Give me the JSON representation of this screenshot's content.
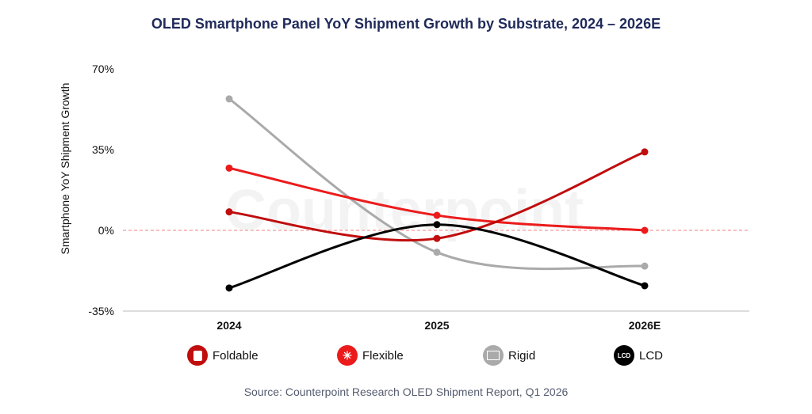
{
  "chart_data": {
    "type": "line",
    "title": "OLED Smartphone Panel YoY Shipment Growth by Substrate, 2024 – 2026E",
    "ylabel": "Smartphone YoY Shipment Growth",
    "xlabel": "",
    "categories": [
      "2024",
      "2025",
      "2026E"
    ],
    "ylim": [
      -35,
      70
    ],
    "yticks": [
      "70%",
      "35%",
      "0%",
      "-35%"
    ],
    "ytick_values": [
      70,
      35,
      0,
      -35
    ],
    "zero_line": "dashed",
    "grid": false,
    "legend_position": "bottom",
    "series": [
      {
        "name": "Foldable",
        "color": "#c00d0d",
        "icon": "foldable-phone-icon",
        "values": [
          8,
          -3.5,
          34
        ]
      },
      {
        "name": "Flexible",
        "color": "#ec1b1b",
        "icon": "flexible-panel-icon",
        "values": [
          27,
          6.5,
          0
        ]
      },
      {
        "name": "Rigid",
        "color": "#aaaaaa",
        "icon": "rigid-panel-icon",
        "values": [
          57,
          -9.5,
          -15.5
        ]
      },
      {
        "name": "LCD",
        "color": "#000000",
        "icon": "lcd-monitor-icon",
        "values": [
          -25,
          2.5,
          -24
        ]
      }
    ]
  },
  "lcd_icon_text": "LCD",
  "watermark": "Counterpoint",
  "source": "Source: Counterpoint Research OLED Shipment Report, Q1 2026"
}
